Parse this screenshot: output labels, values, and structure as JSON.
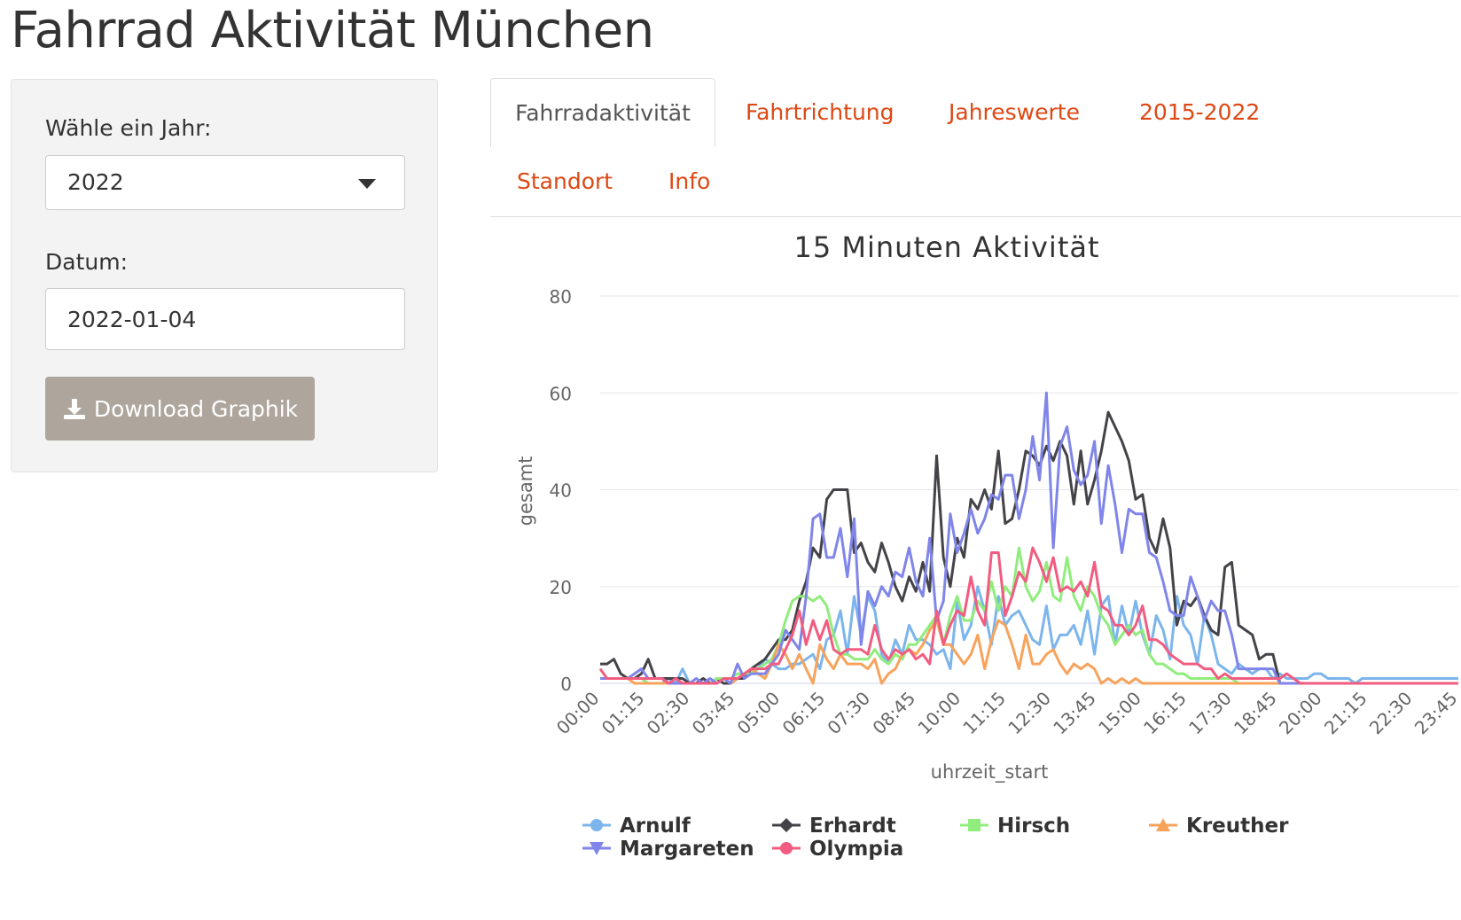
{
  "app": {
    "title": "Fahrrad Aktivität München"
  },
  "sidebar": {
    "year_label": "Wähle ein Jahr:",
    "year_value": "2022",
    "date_label": "Datum:",
    "date_value": "2022-01-04",
    "download_label": "Download Graphik"
  },
  "tabs": [
    {
      "label": "Fahrradaktivität",
      "active": true
    },
    {
      "label": "Fahrtrichtung",
      "active": false
    },
    {
      "label": "Jahreswerte",
      "active": false
    },
    {
      "label": "2015-2022",
      "active": false
    },
    {
      "label": "Standort",
      "active": false
    },
    {
      "label": "Info",
      "active": false
    }
  ],
  "colors": {
    "accent": "#dd4814",
    "button": "#aea69d"
  },
  "chart_data": {
    "type": "line",
    "title": "15 Minuten Aktivität",
    "xlabel": "uhrzeit_start",
    "ylabel": "gesamt",
    "ylim": [
      0,
      80
    ],
    "yticks": [
      0,
      20,
      40,
      60,
      80
    ],
    "x_tick_labels": [
      "00:00",
      "01:15",
      "02:30",
      "03:45",
      "05:00",
      "06:15",
      "07:30",
      "08:45",
      "10:00",
      "11:15",
      "12:30",
      "13:45",
      "15:00",
      "16:15",
      "17:30",
      "18:45",
      "20:00",
      "21:15",
      "22:30",
      "23:45"
    ],
    "grid": true,
    "legend_position": "bottom",
    "x_interval_minutes": 15,
    "series": [
      {
        "name": "Arnulf",
        "color": "#7cb5ec",
        "marker": "circle",
        "values": [
          1,
          1,
          1,
          1,
          1,
          1,
          1,
          0,
          0,
          0,
          1,
          0,
          3,
          0,
          0,
          1,
          0,
          0,
          1,
          0,
          1,
          2,
          2,
          3,
          5,
          4,
          3,
          3,
          4,
          4,
          5,
          6,
          3,
          9,
          10,
          15,
          6,
          18,
          10,
          18,
          15,
          6,
          4,
          9,
          6,
          12,
          9,
          9,
          8,
          6,
          7,
          3,
          17,
          9,
          12,
          20,
          15,
          8,
          18,
          12,
          14,
          15,
          12,
          9,
          8,
          16,
          7,
          10,
          10,
          12,
          8,
          15,
          6,
          16,
          18,
          8,
          16,
          10,
          17,
          10,
          6,
          14,
          11,
          5,
          18,
          12,
          10,
          4,
          14,
          10,
          4,
          3,
          2,
          4,
          3,
          2,
          3,
          3,
          1,
          2,
          1,
          1,
          1,
          1,
          2,
          2,
          1,
          1,
          1,
          1,
          0,
          1,
          1,
          1,
          1,
          1,
          1,
          1,
          1,
          1,
          1,
          1,
          1,
          1,
          1,
          1
        ]
      },
      {
        "name": "Erhardt",
        "color": "#434348",
        "marker": "diamond",
        "values": [
          4,
          4,
          5,
          2,
          1,
          1,
          2,
          5,
          1,
          1,
          1,
          1,
          1,
          0,
          0,
          1,
          0,
          1,
          0,
          0,
          1,
          1,
          3,
          4,
          5,
          7,
          9,
          9,
          11,
          17,
          21,
          28,
          26,
          38,
          40,
          40,
          40,
          27,
          29,
          25,
          23,
          29,
          25,
          20,
          17,
          22,
          19,
          25,
          19,
          47,
          26,
          20,
          30,
          26,
          38,
          36,
          40,
          36,
          48,
          33,
          34,
          40,
          48,
          47,
          45,
          49,
          46,
          50,
          47,
          37,
          48,
          37,
          42,
          48,
          56,
          53,
          50,
          46,
          38,
          39,
          30,
          27,
          34,
          28,
          12,
          17,
          16,
          18,
          14,
          11,
          10,
          24,
          25,
          12,
          11,
          10,
          5,
          6,
          6,
          0,
          0,
          0,
          0,
          0,
          0,
          0,
          0,
          0,
          0,
          0,
          0,
          0,
          0,
          0,
          0,
          0,
          0,
          0,
          0,
          0,
          0,
          0,
          0,
          0,
          0,
          0
        ]
      },
      {
        "name": "Hirsch",
        "color": "#90ed7d",
        "marker": "square",
        "values": [
          1,
          1,
          1,
          1,
          1,
          1,
          1,
          0,
          0,
          0,
          0,
          0,
          0,
          0,
          0,
          0,
          0,
          1,
          1,
          1,
          2,
          2,
          2,
          3,
          4,
          5,
          8,
          13,
          17,
          18,
          18,
          17,
          18,
          16,
          10,
          6,
          6,
          5,
          5,
          5,
          7,
          5,
          4,
          6,
          5,
          8,
          8,
          10,
          12,
          14,
          8,
          14,
          18,
          13,
          13,
          17,
          15,
          21,
          15,
          20,
          18,
          28,
          20,
          17,
          19,
          25,
          18,
          17,
          26,
          18,
          15,
          20,
          18,
          14,
          12,
          8,
          10,
          12,
          10,
          11,
          6,
          4,
          4,
          3,
          2,
          2,
          1,
          1,
          1,
          1,
          1,
          1,
          1,
          0,
          0,
          0,
          0,
          0,
          0,
          0,
          0,
          0,
          0,
          0,
          0,
          0,
          0,
          0,
          0,
          0,
          0,
          0,
          0,
          0,
          0,
          0,
          0,
          0,
          0,
          0,
          0,
          0,
          0,
          0,
          0,
          0
        ]
      },
      {
        "name": "Kreuther",
        "color": "#f7a35c",
        "marker": "triangle",
        "values": [
          1,
          1,
          1,
          1,
          1,
          0,
          0,
          0,
          0,
          0,
          0,
          0,
          0,
          0,
          0,
          0,
          0,
          0,
          1,
          0,
          1,
          2,
          3,
          2,
          1,
          4,
          8,
          6,
          3,
          6,
          3,
          0,
          8,
          5,
          3,
          6,
          4,
          4,
          4,
          3,
          5,
          0,
          2,
          3,
          6,
          7,
          6,
          8,
          11,
          13,
          8,
          8,
          6,
          4,
          6,
          10,
          3,
          9,
          13,
          12,
          8,
          3,
          10,
          4,
          4,
          6,
          7,
          4,
          2,
          4,
          3,
          4,
          3,
          0,
          1,
          0,
          1,
          0,
          1,
          0,
          0,
          0,
          0,
          0,
          0,
          0,
          0,
          0,
          0,
          0,
          0,
          0,
          0,
          0,
          0,
          0,
          0,
          0,
          0,
          0,
          0,
          0,
          0,
          0,
          0,
          0,
          0,
          0,
          0,
          0,
          0,
          0,
          0,
          0,
          0,
          0,
          0,
          0,
          0,
          0,
          0,
          0,
          0,
          0,
          0,
          0
        ]
      },
      {
        "name": "Margareten",
        "color": "#8085e9",
        "marker": "triangle-down",
        "values": [
          1,
          1,
          1,
          1,
          1,
          2,
          3,
          1,
          1,
          1,
          0,
          0,
          0,
          0,
          1,
          0,
          1,
          0,
          1,
          0,
          4,
          1,
          2,
          2,
          2,
          4,
          6,
          11,
          9,
          7,
          18,
          34,
          35,
          26,
          26,
          32,
          22,
          34,
          8,
          19,
          16,
          20,
          18,
          23,
          22,
          28,
          21,
          18,
          30,
          13,
          17,
          35,
          27,
          31,
          36,
          31,
          34,
          39,
          38,
          43,
          43,
          34,
          40,
          51,
          42,
          60,
          28,
          49,
          53,
          44,
          41,
          43,
          50,
          33,
          45,
          37,
          27,
          36,
          35,
          35,
          27,
          26,
          21,
          15,
          14,
          14,
          22,
          18,
          13,
          17,
          15,
          15,
          10,
          3,
          3,
          3,
          3,
          3,
          3,
          0,
          0,
          0,
          0,
          0,
          0,
          0,
          0,
          0,
          0,
          0,
          0,
          0,
          0,
          0,
          0,
          0,
          0,
          0,
          0,
          0,
          0,
          0,
          0,
          0,
          0,
          0
        ]
      },
      {
        "name": "Olympia",
        "color": "#f15c80",
        "marker": "circle",
        "values": [
          3,
          1,
          1,
          1,
          1,
          1,
          1,
          1,
          1,
          1,
          0,
          1,
          0,
          0,
          0,
          0,
          0,
          0,
          1,
          1,
          1,
          2,
          3,
          3,
          3,
          4,
          4,
          7,
          10,
          15,
          8,
          13,
          9,
          13,
          7,
          6,
          7,
          7,
          7,
          6,
          12,
          7,
          5,
          7,
          6,
          7,
          5,
          6,
          4,
          15,
          8,
          12,
          15,
          14,
          22,
          15,
          12,
          27,
          27,
          14,
          18,
          23,
          21,
          28,
          25,
          21,
          26,
          19,
          20,
          19,
          21,
          18,
          25,
          16,
          15,
          12,
          12,
          10,
          12,
          16,
          9,
          9,
          8,
          6,
          5,
          4,
          4,
          4,
          3,
          3,
          1,
          2,
          1,
          1,
          1,
          1,
          1,
          1,
          1,
          1,
          2,
          1,
          0,
          0,
          0,
          0,
          0,
          0,
          0,
          0,
          0,
          0,
          0,
          0,
          0,
          0,
          0,
          0,
          0,
          0,
          0,
          0,
          0,
          0,
          0,
          0
        ]
      }
    ]
  }
}
